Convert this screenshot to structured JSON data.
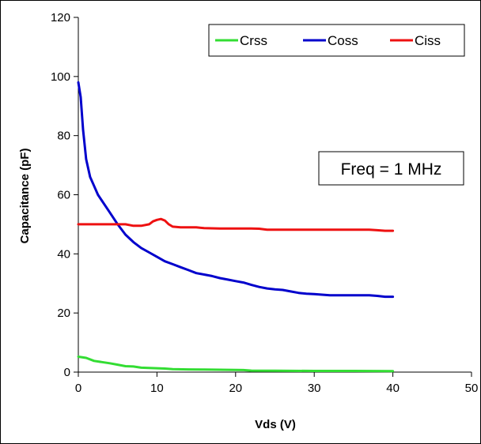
{
  "chart_data": {
    "type": "line",
    "title": "",
    "xlabel": "Vds (V)",
    "ylabel": "Capacitance (pF)",
    "xlim": [
      0,
      50
    ],
    "ylim": [
      0,
      120
    ],
    "xticks": [
      0,
      10,
      20,
      30,
      40,
      50
    ],
    "yticks": [
      0,
      20,
      40,
      60,
      80,
      100,
      120
    ],
    "grid": false,
    "legend_position": "top-right",
    "annotation": "Freq = 1 MHz",
    "series": [
      {
        "name": "Crss",
        "color": "#33dd33",
        "points": [
          [
            0,
            5.2
          ],
          [
            1,
            4.8
          ],
          [
            2,
            3.8
          ],
          [
            3,
            3.4
          ],
          [
            4,
            3.0
          ],
          [
            5,
            2.5
          ],
          [
            6,
            2.0
          ],
          [
            7,
            1.9
          ],
          [
            8,
            1.5
          ],
          [
            9,
            1.4
          ],
          [
            10,
            1.3
          ],
          [
            11,
            1.2
          ],
          [
            12,
            1.0
          ],
          [
            14,
            0.9
          ],
          [
            16,
            0.85
          ],
          [
            18,
            0.8
          ],
          [
            20,
            0.75
          ],
          [
            21,
            0.7
          ],
          [
            22,
            0.5
          ],
          [
            25,
            0.45
          ],
          [
            30,
            0.4
          ],
          [
            35,
            0.4
          ],
          [
            40,
            0.35
          ]
        ]
      },
      {
        "name": "Coss",
        "color": "#0000cc",
        "points": [
          [
            0,
            98
          ],
          [
            0.3,
            93
          ],
          [
            0.6,
            82
          ],
          [
            1,
            72
          ],
          [
            1.5,
            66
          ],
          [
            2,
            63
          ],
          [
            2.5,
            60
          ],
          [
            3,
            58
          ],
          [
            4,
            54
          ],
          [
            5,
            50
          ],
          [
            6,
            46.5
          ],
          [
            7,
            44
          ],
          [
            8,
            42
          ],
          [
            9,
            40.5
          ],
          [
            10,
            39
          ],
          [
            11,
            37.5
          ],
          [
            12,
            36.5
          ],
          [
            13,
            35.5
          ],
          [
            14,
            34.5
          ],
          [
            15,
            33.5
          ],
          [
            16,
            33
          ],
          [
            17,
            32.5
          ],
          [
            18,
            31.8
          ],
          [
            19,
            31.3
          ],
          [
            20,
            30.8
          ],
          [
            21,
            30.3
          ],
          [
            22,
            29.5
          ],
          [
            23,
            28.8
          ],
          [
            24,
            28.3
          ],
          [
            25,
            28
          ],
          [
            26,
            27.8
          ],
          [
            27,
            27.3
          ],
          [
            28,
            26.8
          ],
          [
            29,
            26.5
          ],
          [
            30,
            26.4
          ],
          [
            31,
            26.2
          ],
          [
            32,
            26
          ],
          [
            34,
            26
          ],
          [
            36,
            26
          ],
          [
            37,
            26
          ],
          [
            38,
            25.8
          ],
          [
            39,
            25.5
          ],
          [
            40,
            25.5
          ]
        ]
      },
      {
        "name": "Ciss",
        "color": "#ee1111",
        "points": [
          [
            0,
            50
          ],
          [
            2,
            50
          ],
          [
            4,
            50
          ],
          [
            6,
            50
          ],
          [
            7,
            49.5
          ],
          [
            8,
            49.5
          ],
          [
            9,
            50
          ],
          [
            9.5,
            51
          ],
          [
            10,
            51.5
          ],
          [
            10.5,
            51.8
          ],
          [
            11,
            51.3
          ],
          [
            11.5,
            50
          ],
          [
            12,
            49.2
          ],
          [
            13,
            49
          ],
          [
            15,
            49
          ],
          [
            16,
            48.7
          ],
          [
            18,
            48.6
          ],
          [
            20,
            48.6
          ],
          [
            22,
            48.6
          ],
          [
            23,
            48.5
          ],
          [
            24,
            48.2
          ],
          [
            26,
            48.2
          ],
          [
            30,
            48.2
          ],
          [
            34,
            48.2
          ],
          [
            37,
            48.2
          ],
          [
            38,
            48
          ],
          [
            39,
            47.8
          ],
          [
            40,
            47.8
          ]
        ]
      }
    ]
  }
}
